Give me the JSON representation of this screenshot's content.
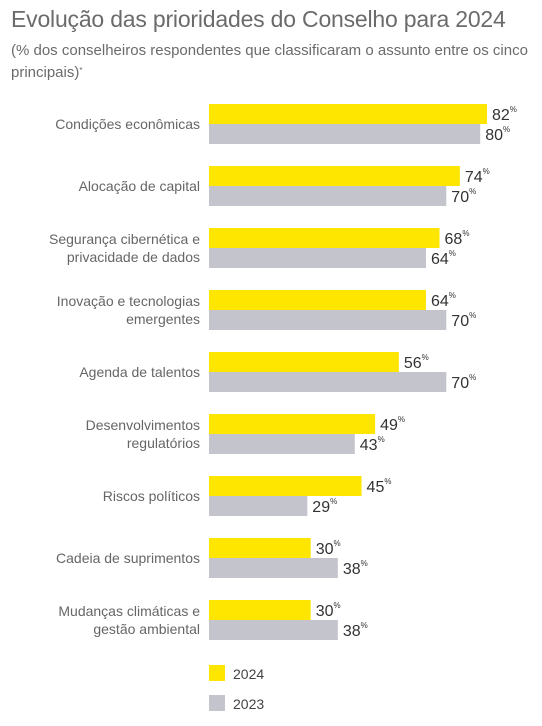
{
  "title": "Evolução das prioridades do Conselho para 2024",
  "subtitle": "(% dos conselheiros respondentes que classificaram o assunto entre os cinco principais)",
  "subtitle_mark": "*",
  "colors": {
    "series_2024": "#ffe600",
    "series_2023": "#c4c4cd"
  },
  "chart_data": {
    "type": "bar",
    "orientation": "horizontal",
    "title": "Evolução das prioridades do Conselho para 2024",
    "categories": [
      [
        "Condições econômicas"
      ],
      [
        "Alocação de capital"
      ],
      [
        "Segurança cibernética e",
        "privacidade de dados"
      ],
      [
        "Inovação e tecnologias",
        "emergentes"
      ],
      [
        "Agenda de talentos"
      ],
      [
        "Desenvolvimentos",
        "regulatórios"
      ],
      [
        "Riscos políticos"
      ],
      [
        "Cadeia de suprimentos"
      ],
      [
        "Mudanças climáticas e",
        "gestão ambiental"
      ]
    ],
    "series": [
      {
        "name": "2024",
        "color": "#ffe600",
        "values": [
          82,
          74,
          68,
          64,
          56,
          49,
          45,
          30,
          30
        ]
      },
      {
        "name": "2023",
        "color": "#c4c4cd",
        "values": [
          80,
          70,
          64,
          70,
          70,
          43,
          29,
          38,
          38
        ]
      }
    ],
    "value_suffix": "%",
    "xlim": [
      0,
      100
    ],
    "grid": false,
    "legend": {
      "position": "bottom-left",
      "entries": [
        "2024",
        "2023"
      ]
    }
  }
}
